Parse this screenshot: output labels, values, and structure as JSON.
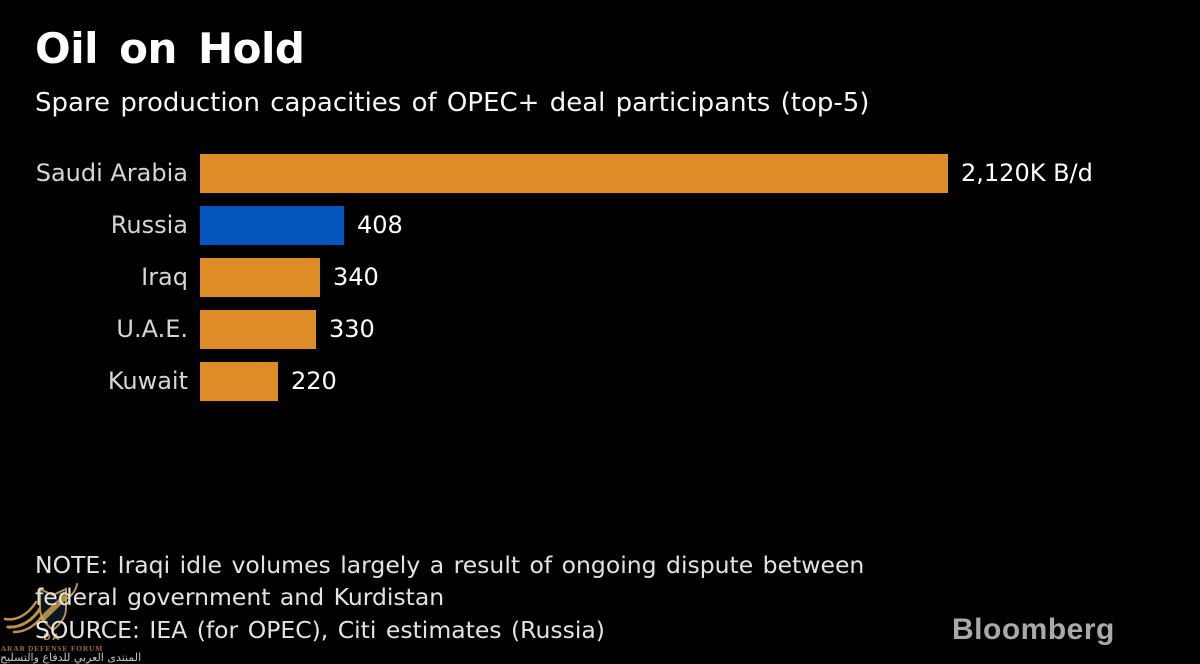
{
  "header": {
    "title": "Oil on Hold",
    "subtitle": "Spare production capacities of OPEC+ deal participants (top-5)"
  },
  "chart_data": {
    "type": "bar",
    "orientation": "horizontal",
    "title": "Oil on Hold",
    "subtitle": "Spare production capacities of OPEC+ deal participants (top-5)",
    "categories": [
      "Saudi Arabia",
      "Russia",
      "Iraq",
      "U.A.E.",
      "Kuwait"
    ],
    "values": [
      2120,
      408,
      340,
      330,
      220
    ],
    "value_labels": [
      "2,120K B/d",
      "408",
      "340",
      "330",
      "220"
    ],
    "unit": "K B/d",
    "xlim": [
      0,
      2120
    ],
    "grid": false,
    "legend": "none",
    "highlight_category": "Russia",
    "bar_colors": [
      "#dd8c27",
      "#0455be",
      "#dd8c27",
      "#dd8c27",
      "#dd8c27"
    ]
  },
  "footer": {
    "note_lines": [
      "NOTE: Iraqi idle volumes largely a result of ongoing dispute between",
      "federal government and Kurdistan"
    ],
    "source": "SOURCE: IEA (for OPEC), Citi estimates (Russia)",
    "brand": "Bloomberg"
  },
  "watermark": {
    "monogram": "DA",
    "name_en": "ARAB DEFENSE FORUM",
    "name_ar": "المنتدى العربي للدفاع والتسليح",
    "gold_color": "#c59a4d",
    "shield_color": "#0d1722"
  },
  "colors": {
    "background": "#000000",
    "bar_orange": "#dd8c27",
    "bar_blue": "#0455be",
    "category_label": "#d6d6d6",
    "value_label": "#ffffff",
    "note_text": "#e3e3e3",
    "brand_gray": "#a9a9a9"
  }
}
